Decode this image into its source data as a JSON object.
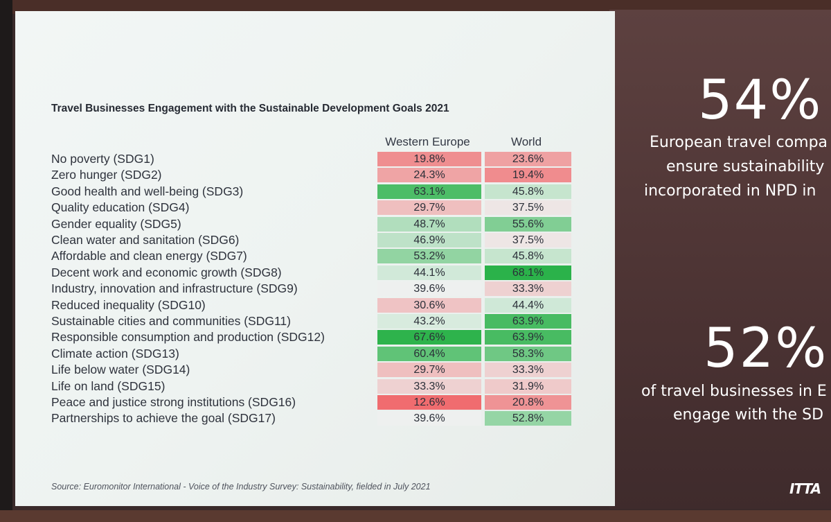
{
  "chart_data": {
    "type": "table",
    "title": "Travel Businesses Engagement with the Sustainable Development Goals 2021",
    "columns": [
      "Western Europe",
      "World"
    ],
    "rows": [
      {
        "label": "No poverty (SDG1)",
        "values": [
          "19.8%",
          "23.6%"
        ],
        "nums": [
          19.8,
          23.6
        ]
      },
      {
        "label": "Zero hunger (SDG2)",
        "values": [
          "24.3%",
          "19.4%"
        ],
        "nums": [
          24.3,
          19.4
        ]
      },
      {
        "label": "Good health and well-being (SDG3)",
        "values": [
          "63.1%",
          "45.8%"
        ],
        "nums": [
          63.1,
          45.8
        ]
      },
      {
        "label": "Quality education (SDG4)",
        "values": [
          "29.7%",
          "37.5%"
        ],
        "nums": [
          29.7,
          37.5
        ]
      },
      {
        "label": "Gender equality (SDG5)",
        "values": [
          "48.7%",
          "55.6%"
        ],
        "nums": [
          48.7,
          55.6
        ]
      },
      {
        "label": "Clean water and sanitation (SDG6)",
        "values": [
          "46.9%",
          "37.5%"
        ],
        "nums": [
          46.9,
          37.5
        ]
      },
      {
        "label": "Affordable and clean energy (SDG7)",
        "values": [
          "53.2%",
          "45.8%"
        ],
        "nums": [
          53.2,
          45.8
        ]
      },
      {
        "label": "Decent work and economic growth (SDG8)",
        "values": [
          "44.1%",
          "68.1%"
        ],
        "nums": [
          44.1,
          68.1
        ]
      },
      {
        "label": "Industry, innovation and infrastructure (SDG9)",
        "values": [
          "39.6%",
          "33.3%"
        ],
        "nums": [
          39.6,
          33.3
        ]
      },
      {
        "label": "Reduced inequality (SDG10)",
        "values": [
          "30.6%",
          "44.4%"
        ],
        "nums": [
          30.6,
          44.4
        ]
      },
      {
        "label": "Sustainable cities and communities (SDG11)",
        "values": [
          "43.2%",
          "63.9%"
        ],
        "nums": [
          43.2,
          63.9
        ]
      },
      {
        "label": "Responsible consumption and production (SDG12)",
        "values": [
          "67.6%",
          "63.9%"
        ],
        "nums": [
          67.6,
          63.9
        ]
      },
      {
        "label": "Climate action (SDG13)",
        "values": [
          "60.4%",
          "58.3%"
        ],
        "nums": [
          60.4,
          58.3
        ]
      },
      {
        "label": "Life below water (SDG14)",
        "values": [
          "29.7%",
          "33.3%"
        ],
        "nums": [
          29.7,
          33.3
        ]
      },
      {
        "label": "Life on land (SDG15)",
        "values": [
          "33.3%",
          "31.9%"
        ],
        "nums": [
          33.3,
          31.9
        ]
      },
      {
        "label": "Peace and justice strong institutions (SDG16)",
        "values": [
          "12.6%",
          "20.8%"
        ],
        "nums": [
          12.6,
          20.8
        ]
      },
      {
        "label": "Partnerships to achieve the goal (SDG17)",
        "values": [
          "39.6%",
          "52.8%"
        ],
        "nums": [
          39.6,
          52.8
        ]
      }
    ],
    "color_scale": {
      "low": "#f06c6f",
      "mid": "#eef2f1",
      "high": "#2bb24a"
    },
    "source": "Source: Euromonitor International - Voice of the Industry Survey: Sustainability, fielded in July 2021"
  },
  "side": {
    "stat1_value": "54%",
    "stat1_line1": "European travel compa",
    "stat1_line2": "ensure sustainability",
    "stat1_line3": "incorporated in NPD in",
    "stat2_value": "52%",
    "stat2_line1": "of travel businesses in E",
    "stat2_line2": "engage with the SD",
    "logo_text": "ITTA"
  }
}
